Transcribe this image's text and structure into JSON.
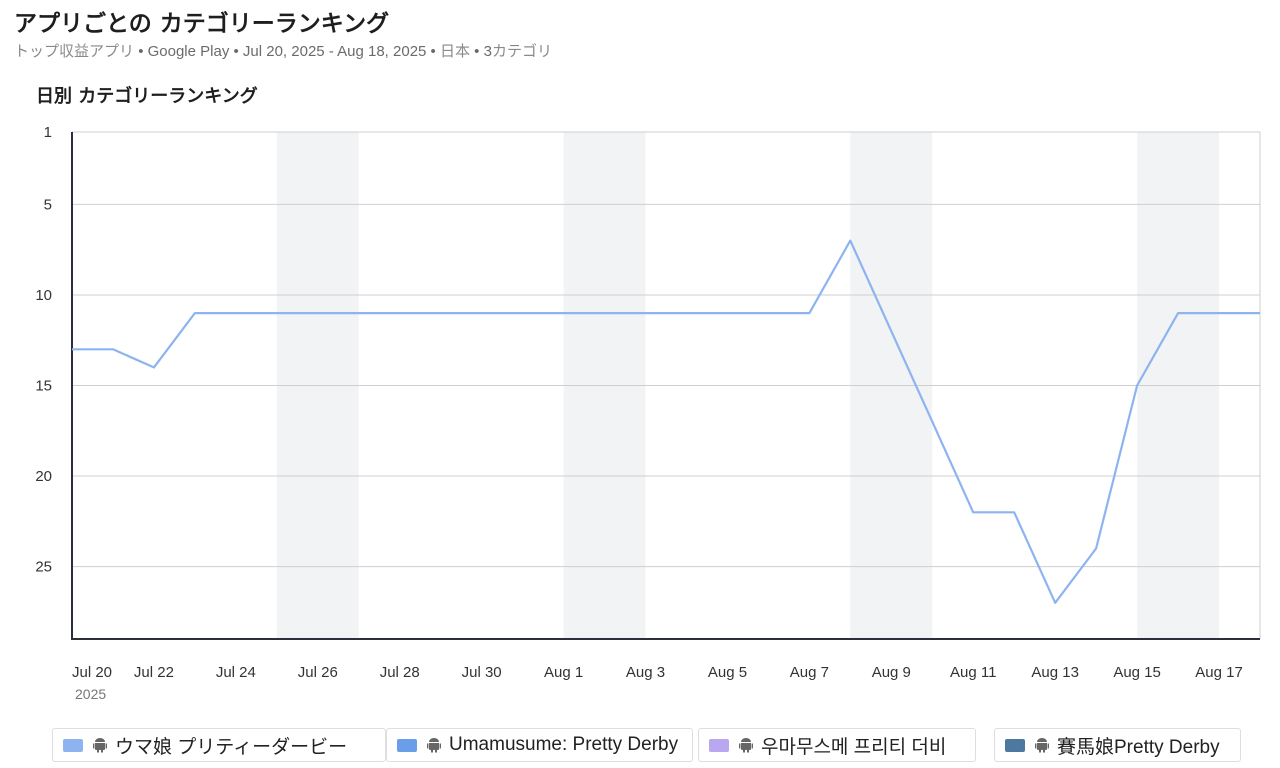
{
  "header": {
    "title": "アプリごとの カテゴリーランキング",
    "subtitle_prefix": "トップ収益アプリ",
    "subtitle_middle": "• Google Play • Jul 20, 2025 - Aug 18, 2025 •",
    "subtitle_country": "日本",
    "subtitle_count": "• 3",
    "subtitle_category": "カテゴリ"
  },
  "section_title": "日別 カテゴリーランキング",
  "colors": {
    "line": "#8db4f0",
    "grid": "#cfcfcf",
    "weekend_band": "#f2f3f5",
    "axis": "#2b2f3a"
  },
  "legend": [
    {
      "label": "ウマ娘 プリティーダービー",
      "color": "#8db4f0",
      "icon": "android-icon"
    },
    {
      "label": "Umamusume: Pretty Derby",
      "color": "#6a9ee8",
      "icon": "android-icon"
    },
    {
      "label": "우마무스메 프리티 더비",
      "color": "#b9a8f0",
      "icon": "android-icon"
    },
    {
      "label": "賽馬娘Pretty Derby",
      "color": "#4d79a0",
      "icon": "android-icon"
    }
  ],
  "chart_data": {
    "type": "line",
    "y_inverted": true,
    "ylim": [
      1,
      29
    ],
    "yticks": [
      1,
      5,
      10,
      15,
      20,
      25
    ],
    "x_range": [
      "Jul 20",
      "Aug 18"
    ],
    "xticks": [
      {
        "label": "Jul 20",
        "day": 0
      },
      {
        "label": "Jul 22",
        "day": 2
      },
      {
        "label": "Jul 24",
        "day": 4
      },
      {
        "label": "Jul 26",
        "day": 6
      },
      {
        "label": "Jul 28",
        "day": 8
      },
      {
        "label": "Jul 30",
        "day": 10
      },
      {
        "label": "Aug 1",
        "day": 12
      },
      {
        "label": "Aug 3",
        "day": 14
      },
      {
        "label": "Aug 5",
        "day": 16
      },
      {
        "label": "Aug 7",
        "day": 18
      },
      {
        "label": "Aug 9",
        "day": 20
      },
      {
        "label": "Aug 11",
        "day": 22
      },
      {
        "label": "Aug 13",
        "day": 24
      },
      {
        "label": "Aug 15",
        "day": 26
      },
      {
        "label": "Aug 17",
        "day": 28
      }
    ],
    "year_label": "2025",
    "weekend_bands": [
      [
        "Jul 25",
        "Jul 27"
      ],
      [
        "Aug 1",
        "Aug 3"
      ],
      [
        "Aug 8",
        "Aug 10"
      ],
      [
        "Aug 15",
        "Aug 17"
      ]
    ],
    "x": [
      "Jul 20",
      "Jul 21",
      "Jul 22",
      "Jul 23",
      "Jul 24",
      "Jul 25",
      "Jul 26",
      "Jul 27",
      "Jul 28",
      "Jul 29",
      "Jul 30",
      "Jul 31",
      "Aug 1",
      "Aug 2",
      "Aug 3",
      "Aug 4",
      "Aug 5",
      "Aug 6",
      "Aug 7",
      "Aug 8",
      "Aug 9",
      "Aug 10",
      "Aug 11",
      "Aug 12",
      "Aug 13",
      "Aug 14",
      "Aug 15",
      "Aug 16",
      "Aug 17",
      "Aug 18"
    ],
    "series": [
      {
        "name": "ウマ娘 プリティーダービー",
        "values": [
          13,
          13,
          14,
          11,
          11,
          11,
          11,
          11,
          11,
          11,
          11,
          11,
          11,
          11,
          11,
          11,
          11,
          11,
          11,
          7,
          12,
          17,
          22,
          22,
          27,
          24,
          15,
          11,
          11,
          11
        ]
      }
    ]
  }
}
